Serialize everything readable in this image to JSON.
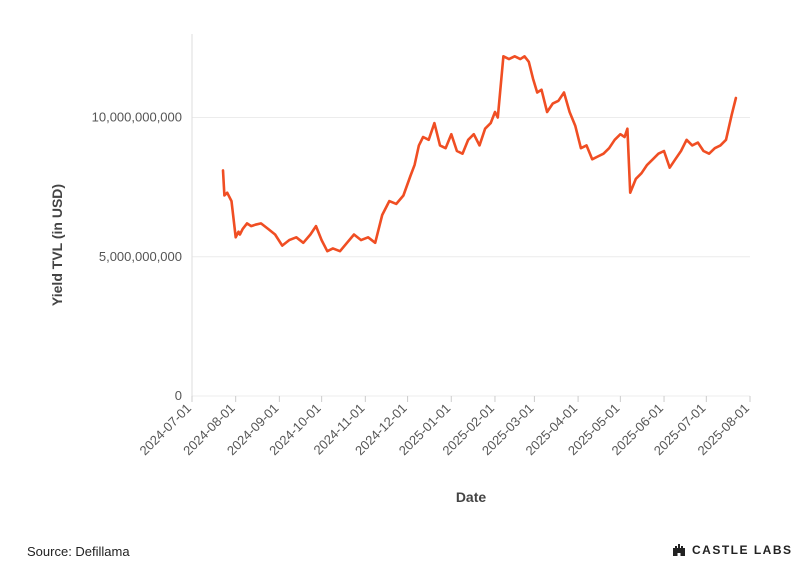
{
  "chart_data": {
    "type": "line",
    "xlabel": "Date",
    "ylabel": "Yield TVL (in USD)",
    "x_ticks": [
      "2024-07-01",
      "2024-08-01",
      "2024-09-01",
      "2024-10-01",
      "2024-11-01",
      "2024-12-01",
      "2025-01-01",
      "2025-02-01",
      "2025-03-01",
      "2025-04-01",
      "2025-05-01",
      "2025-06-01",
      "2025-07-01",
      "2025-08-01"
    ],
    "xlim": [
      "2024-07-01",
      "2025-08-01"
    ],
    "y_ticks": [
      {
        "value": 0,
        "label": "0"
      },
      {
        "value": 5000000000,
        "label": "5,000,000,000"
      },
      {
        "value": 10000000000,
        "label": "10,000,000,000"
      }
    ],
    "ylim": [
      0,
      13000000000
    ],
    "grid": "horizontal",
    "line_color": "#f04e23",
    "series": [
      {
        "x": [
          "2024-07-23",
          "2024-07-24",
          "2024-07-26",
          "2024-07-29",
          "2024-08-01",
          "2024-08-03",
          "2024-08-04",
          "2024-08-06",
          "2024-08-09",
          "2024-08-12",
          "2024-08-15",
          "2024-08-19",
          "2024-08-24",
          "2024-08-29",
          "2024-09-03",
          "2024-09-08",
          "2024-09-13",
          "2024-09-18",
          "2024-09-23",
          "2024-09-27",
          "2024-10-01",
          "2024-10-05",
          "2024-10-09",
          "2024-10-14",
          "2024-10-19",
          "2024-10-24",
          "2024-10-29",
          "2024-11-03",
          "2024-11-08",
          "2024-11-13",
          "2024-11-18",
          "2024-11-23",
          "2024-11-28",
          "2024-12-03",
          "2024-12-06",
          "2024-12-09",
          "2024-12-12",
          "2024-12-16",
          "2024-12-20",
          "2024-12-24",
          "2024-12-28",
          "2025-01-01",
          "2025-01-05",
          "2025-01-09",
          "2025-01-13",
          "2025-01-17",
          "2025-01-21",
          "2025-01-25",
          "2025-01-29",
          "2025-02-01",
          "2025-02-03",
          "2025-02-07",
          "2025-02-11",
          "2025-02-15",
          "2025-02-19",
          "2025-02-22",
          "2025-02-25",
          "2025-02-28",
          "2025-03-03",
          "2025-03-06",
          "2025-03-10",
          "2025-03-14",
          "2025-03-18",
          "2025-03-22",
          "2025-03-26",
          "2025-03-30",
          "2025-04-03",
          "2025-04-07",
          "2025-04-11",
          "2025-04-15",
          "2025-04-19",
          "2025-04-23",
          "2025-04-27",
          "2025-05-01",
          "2025-05-04",
          "2025-05-06",
          "2025-05-08",
          "2025-05-12",
          "2025-05-16",
          "2025-05-20",
          "2025-05-24",
          "2025-05-28",
          "2025-06-01",
          "2025-06-05",
          "2025-06-09",
          "2025-06-13",
          "2025-06-17",
          "2025-06-21",
          "2025-06-25",
          "2025-06-29",
          "2025-07-03",
          "2025-07-07",
          "2025-07-11",
          "2025-07-15",
          "2025-07-19",
          "2025-07-22"
        ],
        "y": [
          8100000000,
          7200000000,
          7300000000,
          7000000000,
          5700000000,
          5900000000,
          5800000000,
          6000000000,
          6200000000,
          6100000000,
          6150000000,
          6200000000,
          6000000000,
          5800000000,
          5400000000,
          5600000000,
          5700000000,
          5500000000,
          5800000000,
          6100000000,
          5600000000,
          5200000000,
          5300000000,
          5200000000,
          5500000000,
          5800000000,
          5600000000,
          5700000000,
          5500000000,
          6500000000,
          7000000000,
          6900000000,
          7200000000,
          7900000000,
          8300000000,
          9000000000,
          9300000000,
          9200000000,
          9800000000,
          9000000000,
          8900000000,
          9400000000,
          8800000000,
          8700000000,
          9200000000,
          9400000000,
          9000000000,
          9600000000,
          9800000000,
          10200000000,
          10000000000,
          12200000000,
          12100000000,
          12200000000,
          12100000000,
          12200000000,
          12000000000,
          11400000000,
          10900000000,
          11000000000,
          10200000000,
          10500000000,
          10600000000,
          10900000000,
          10200000000,
          9700000000,
          8900000000,
          9000000000,
          8500000000,
          8600000000,
          8700000000,
          8900000000,
          9200000000,
          9400000000,
          9300000000,
          9600000000,
          7300000000,
          7800000000,
          8000000000,
          8300000000,
          8500000000,
          8700000000,
          8800000000,
          8200000000,
          8500000000,
          8800000000,
          9200000000,
          9000000000,
          9100000000,
          8800000000,
          8700000000,
          8900000000,
          9000000000,
          9200000000,
          10100000000,
          10700000000
        ]
      }
    ]
  },
  "footer": {
    "source": "Source: Defillama",
    "logo_text": "CASTLE LABS"
  }
}
